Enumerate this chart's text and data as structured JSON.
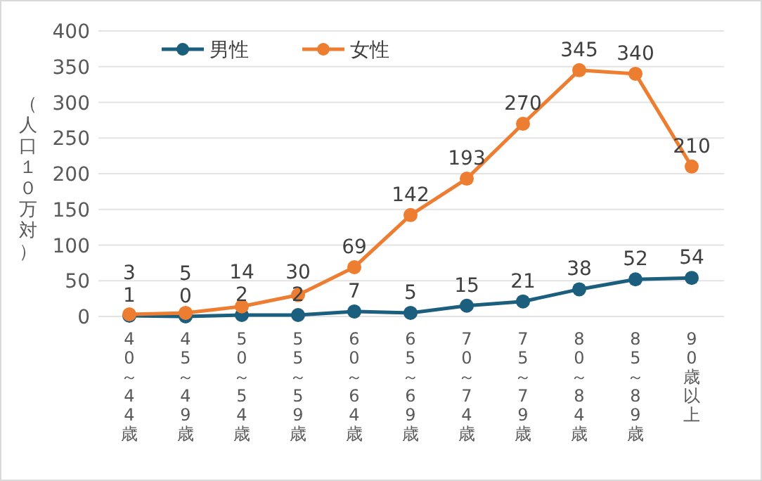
{
  "chart_data": {
    "type": "line",
    "ylabel": "（人口１０万対）",
    "categories": [
      "40～44歳",
      "45～49歳",
      "50～54歳",
      "55～59歳",
      "60～64歳",
      "65～69歳",
      "70～74歳",
      "75～79歳",
      "80～84歳",
      "85～89歳",
      "90歳以上"
    ],
    "series": [
      {
        "name": "男性",
        "color": "#1b5e7e",
        "values": [
          1,
          0,
          2,
          2,
          7,
          5,
          15,
          21,
          38,
          52,
          54
        ]
      },
      {
        "name": "女性",
        "color": "#ed7d31",
        "values": [
          3,
          5,
          14,
          30,
          69,
          142,
          193,
          270,
          345,
          340,
          210
        ]
      }
    ],
    "ylim": [
      0,
      400
    ],
    "yticks": [
      0,
      50,
      100,
      150,
      200,
      250,
      300,
      350,
      400
    ],
    "grid": "y",
    "legend": "top left",
    "marker": "circle",
    "data_labels": true
  }
}
